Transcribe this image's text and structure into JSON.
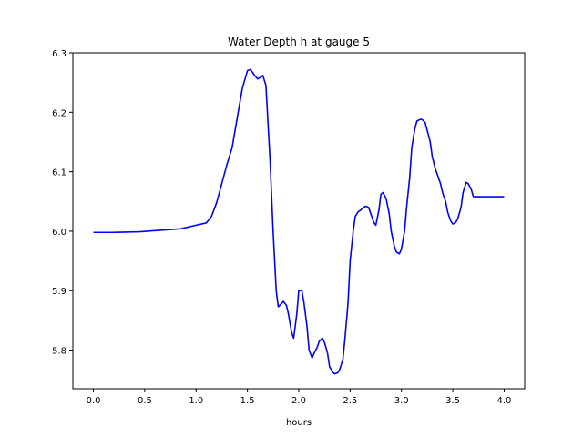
{
  "chart_data": {
    "type": "line",
    "title": "Water Depth h at gauge 5",
    "xlabel": "hours",
    "ylabel": "",
    "xlim": [
      -0.2,
      4.2
    ],
    "ylim": [
      5.735,
      6.3
    ],
    "xticks": [
      0.0,
      0.5,
      1.0,
      1.5,
      2.0,
      2.5,
      3.0,
      3.5,
      4.0
    ],
    "xtick_labels": [
      "0.0",
      "0.5",
      "1.0",
      "1.5",
      "2.0",
      "2.5",
      "3.0",
      "3.5",
      "4.0"
    ],
    "yticks": [
      5.8,
      5.9,
      6.0,
      6.1,
      6.2,
      6.3
    ],
    "ytick_labels": [
      "5.8",
      "5.9",
      "6.0",
      "6.1",
      "6.2",
      "6.3"
    ],
    "grid": false,
    "series": [
      {
        "color": "#0000ff",
        "x": [
          0.0,
          0.2,
          0.45,
          0.6,
          0.85,
          1.0,
          1.1,
          1.15,
          1.2,
          1.25,
          1.3,
          1.35,
          1.4,
          1.45,
          1.5,
          1.53,
          1.57,
          1.6,
          1.62,
          1.65,
          1.68,
          1.72,
          1.75,
          1.78,
          1.8,
          1.83,
          1.85,
          1.88,
          1.9,
          1.93,
          1.95,
          1.98,
          2.0,
          2.03,
          2.05,
          2.08,
          2.1,
          2.13,
          2.15,
          2.18,
          2.2,
          2.23,
          2.25,
          2.28,
          2.3,
          2.33,
          2.35,
          2.38,
          2.4,
          2.43,
          2.45,
          2.48,
          2.5,
          2.53,
          2.55,
          2.58,
          2.6,
          2.63,
          2.65,
          2.68,
          2.7,
          2.73,
          2.75,
          2.78,
          2.8,
          2.82,
          2.85,
          2.88,
          2.9,
          2.93,
          2.95,
          2.98,
          3.0,
          3.03,
          3.05,
          3.08,
          3.1,
          3.13,
          3.15,
          3.18,
          3.2,
          3.23,
          3.25,
          3.28,
          3.3,
          3.33,
          3.35,
          3.38,
          3.4,
          3.43,
          3.45,
          3.48,
          3.5,
          3.53,
          3.55,
          3.58,
          3.6,
          3.63,
          3.65,
          3.68,
          3.7,
          3.73,
          3.75,
          3.78,
          3.8,
          3.83,
          3.85,
          3.88,
          3.9,
          3.93,
          3.95,
          3.98,
          4.0
        ],
        "y": [
          5.998,
          5.998,
          5.999,
          6.001,
          6.004,
          6.01,
          6.014,
          6.025,
          6.048,
          6.08,
          6.112,
          6.14,
          6.19,
          6.24,
          6.27,
          6.272,
          6.262,
          6.256,
          6.258,
          6.262,
          6.245,
          6.12,
          6.0,
          5.9,
          5.873,
          5.878,
          5.882,
          5.875,
          5.86,
          5.83,
          5.82,
          5.86,
          5.9,
          5.9,
          5.88,
          5.84,
          5.8,
          5.787,
          5.795,
          5.805,
          5.815,
          5.82,
          5.813,
          5.795,
          5.772,
          5.763,
          5.76,
          5.762,
          5.768,
          5.785,
          5.82,
          5.88,
          5.95,
          6.0,
          6.025,
          6.033,
          6.035,
          6.04,
          6.042,
          6.04,
          6.03,
          6.015,
          6.01,
          6.035,
          6.062,
          6.065,
          6.055,
          6.03,
          6.0,
          5.975,
          5.965,
          5.962,
          5.97,
          6.0,
          6.04,
          6.09,
          6.14,
          6.172,
          6.185,
          6.188,
          6.188,
          6.183,
          6.17,
          6.15,
          6.125,
          6.105,
          6.095,
          6.08,
          6.065,
          6.05,
          6.032,
          6.017,
          6.012,
          6.015,
          6.022,
          6.04,
          6.065,
          6.082,
          6.08,
          6.07,
          6.058,
          6.058,
          6.058,
          6.058,
          6.058,
          6.058,
          6.058,
          6.058,
          6.058,
          6.058,
          6.058,
          6.058,
          6.058
        ]
      }
    ]
  }
}
